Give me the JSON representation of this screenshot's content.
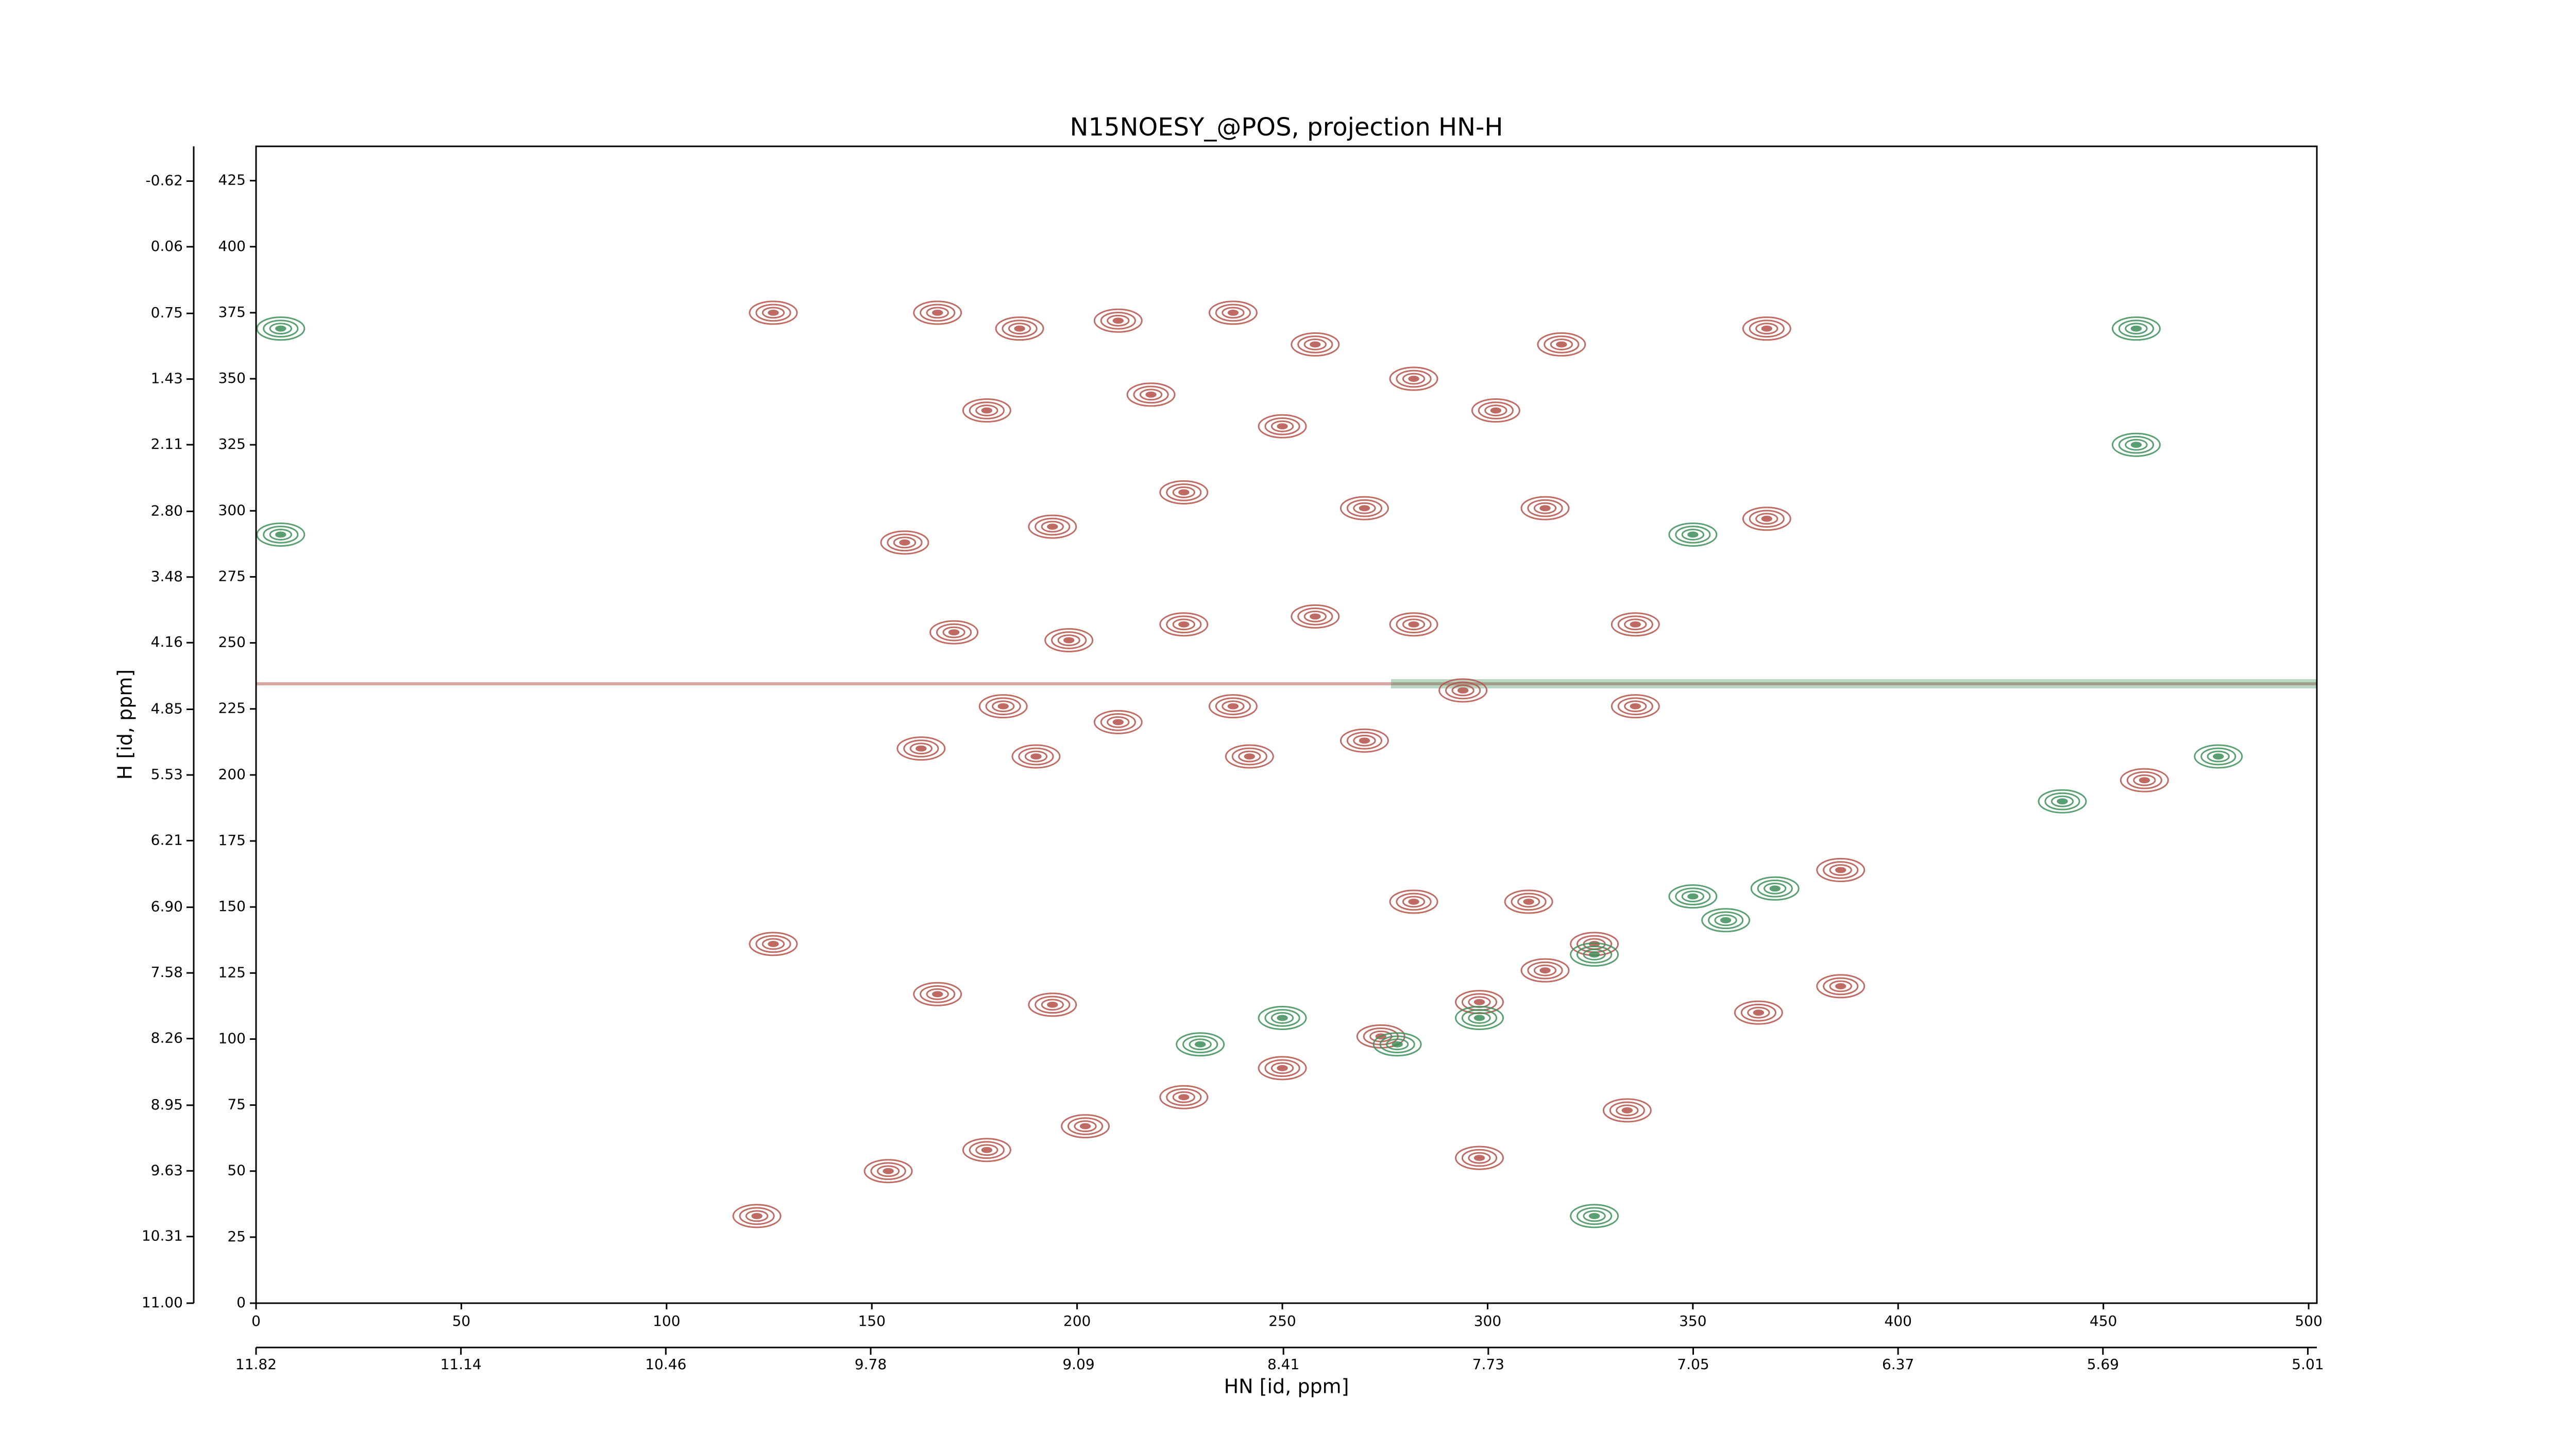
{
  "chart_data": {
    "type": "contour-peaks",
    "title": "N15NOESY_@POS, projection HN-H",
    "xlabel": "HN [id, ppm]",
    "ylabel": "H [id, ppm]",
    "xlim": [
      0,
      502
    ],
    "ylim": [
      0,
      438
    ],
    "xticks": [
      0,
      50,
      100,
      150,
      200,
      250,
      300,
      350,
      400,
      450,
      500
    ],
    "yticks": [
      0,
      25,
      50,
      75,
      100,
      125,
      150,
      175,
      200,
      225,
      250,
      275,
      300,
      325,
      350,
      375,
      400,
      425
    ],
    "x2lim": [
      11.82,
      4.98
    ],
    "x2ticks": [
      11.82,
      11.14,
      10.46,
      9.78,
      9.09,
      8.41,
      7.73,
      7.05,
      6.37,
      5.69,
      5.01
    ],
    "y2lim": [
      11.0,
      -0.98
    ],
    "y2ticks": [
      {
        "value": 11.0,
        "label": "11.00"
      },
      10.31,
      9.63,
      8.95,
      8.26,
      7.58,
      {
        "value": 6.9,
        "label": "6.90"
      },
      6.21,
      5.53,
      4.85,
      4.16,
      3.48,
      {
        "value": 2.8,
        "label": "2.80"
      },
      2.11,
      1.43,
      0.75,
      0.06,
      -0.62
    ],
    "series": [
      {
        "color": "#b5524a",
        "x": [
          122,
          154,
          178,
          202,
          226,
          250,
          274,
          298,
          314,
          326,
          126,
          126,
          166,
          186,
          210,
          238,
          258,
          282,
          302,
          318,
          178,
          218,
          250,
          226,
          270,
          194,
          158,
          314,
          170,
          198,
          226,
          258,
          282,
          182,
          210,
          238,
          270,
          294,
          190,
          162,
          242,
          336,
          336,
          368,
          368,
          282,
          310,
          386,
          386,
          366,
          460,
          166,
          194,
          334,
          298
        ],
        "y": [
          33,
          50,
          58,
          67,
          78,
          89,
          101,
          114,
          126,
          136,
          136,
          375,
          375,
          369,
          372,
          375,
          363,
          350,
          338,
          363,
          338,
          344,
          332,
          307,
          301,
          294,
          288,
          301,
          254,
          251,
          257,
          260,
          257,
          226,
          220,
          226,
          213,
          232,
          207,
          210,
          207,
          257,
          226,
          369,
          297,
          152,
          152,
          164,
          120,
          110,
          198,
          117,
          113,
          73,
          55
        ]
      },
      {
        "color": "#3d8f5a",
        "x": [
          350,
          370,
          326,
          358,
          230,
          250,
          278,
          298,
          458,
          458,
          350,
          440,
          326,
          6,
          6,
          478
        ],
        "y": [
          154,
          157,
          132,
          145,
          98,
          108,
          98,
          108,
          369,
          325,
          291,
          190,
          33,
          369,
          291,
          207
        ]
      }
    ]
  }
}
